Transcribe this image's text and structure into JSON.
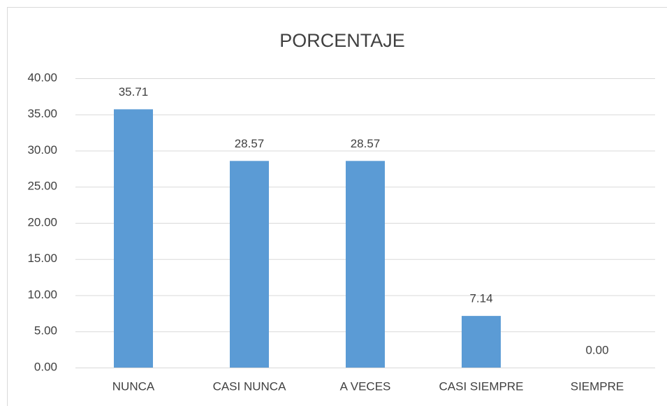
{
  "chart_data": {
    "type": "bar",
    "title": "PORCENTAJE",
    "categories": [
      "NUNCA",
      "CASI NUNCA",
      "A VECES",
      "CASI SIEMPRE",
      "SIEMPRE"
    ],
    "values": [
      35.71,
      28.57,
      28.57,
      7.14,
      0
    ],
    "value_labels": [
      "35.71",
      "28.57",
      "28.57",
      "7.14",
      "0.00"
    ],
    "color": "#5b9bd5",
    "ylim": [
      0,
      40
    ],
    "yticks": [
      {
        "value": 0,
        "label": "0.00"
      },
      {
        "value": 5,
        "label": "5.00"
      },
      {
        "value": 10,
        "label": "10.00"
      },
      {
        "value": 15,
        "label": "15.00"
      },
      {
        "value": 20,
        "label": "20.00"
      },
      {
        "value": 25,
        "label": "25.00"
      },
      {
        "value": 30,
        "label": "30.00"
      },
      {
        "value": 35,
        "label": "35.00"
      },
      {
        "value": 40,
        "label": "40.00"
      }
    ],
    "grid": true
  }
}
